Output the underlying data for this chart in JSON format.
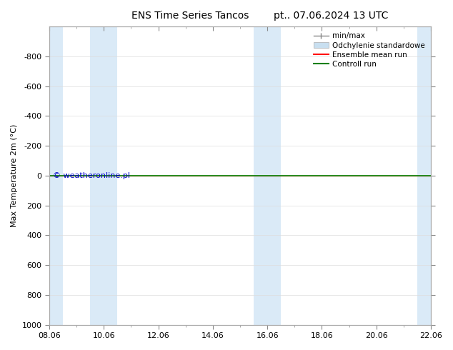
{
  "title_left": "ENS Time Series Tancos",
  "title_right": "pt.. 07.06.2024 13 UTC",
  "ylabel": "Max Temperature 2m (°C)",
  "ylim_min": -1000,
  "ylim_max": 1000,
  "yticks": [
    -800,
    -600,
    -400,
    -200,
    0,
    200,
    400,
    600,
    800,
    1000
  ],
  "x_dates": [
    "08.06",
    "10.06",
    "12.06",
    "14.06",
    "16.06",
    "18.06",
    "20.06",
    "22.06"
  ],
  "x_positions": [
    0,
    2,
    4,
    6,
    8,
    10,
    12,
    14
  ],
  "x_min": 0,
  "x_max": 14,
  "shaded_spans": [
    [
      0,
      0.5
    ],
    [
      1.5,
      2.5
    ],
    [
      7.5,
      8.5
    ],
    [
      13.5,
      14
    ]
  ],
  "shaded_color": "#daeaf7",
  "control_run_y": 0,
  "control_run_color": "#008000",
  "ensemble_mean_color": "#ff0000",
  "minmax_color": "#888888",
  "std_color": "#c8dff0",
  "watermark_text": "© weatheronline.pl",
  "watermark_color": "#0000cc",
  "watermark_fontsize": 8,
  "legend_labels": [
    "min/max",
    "Odchylenie standardowe",
    "Ensemble mean run",
    "Controll run"
  ],
  "background_color": "#ffffff",
  "spine_color": "#aaaaaa",
  "grid_color": "#dddddd",
  "title_fontsize": 10,
  "axis_label_fontsize": 8,
  "tick_fontsize": 8,
  "legend_fontsize": 7.5
}
